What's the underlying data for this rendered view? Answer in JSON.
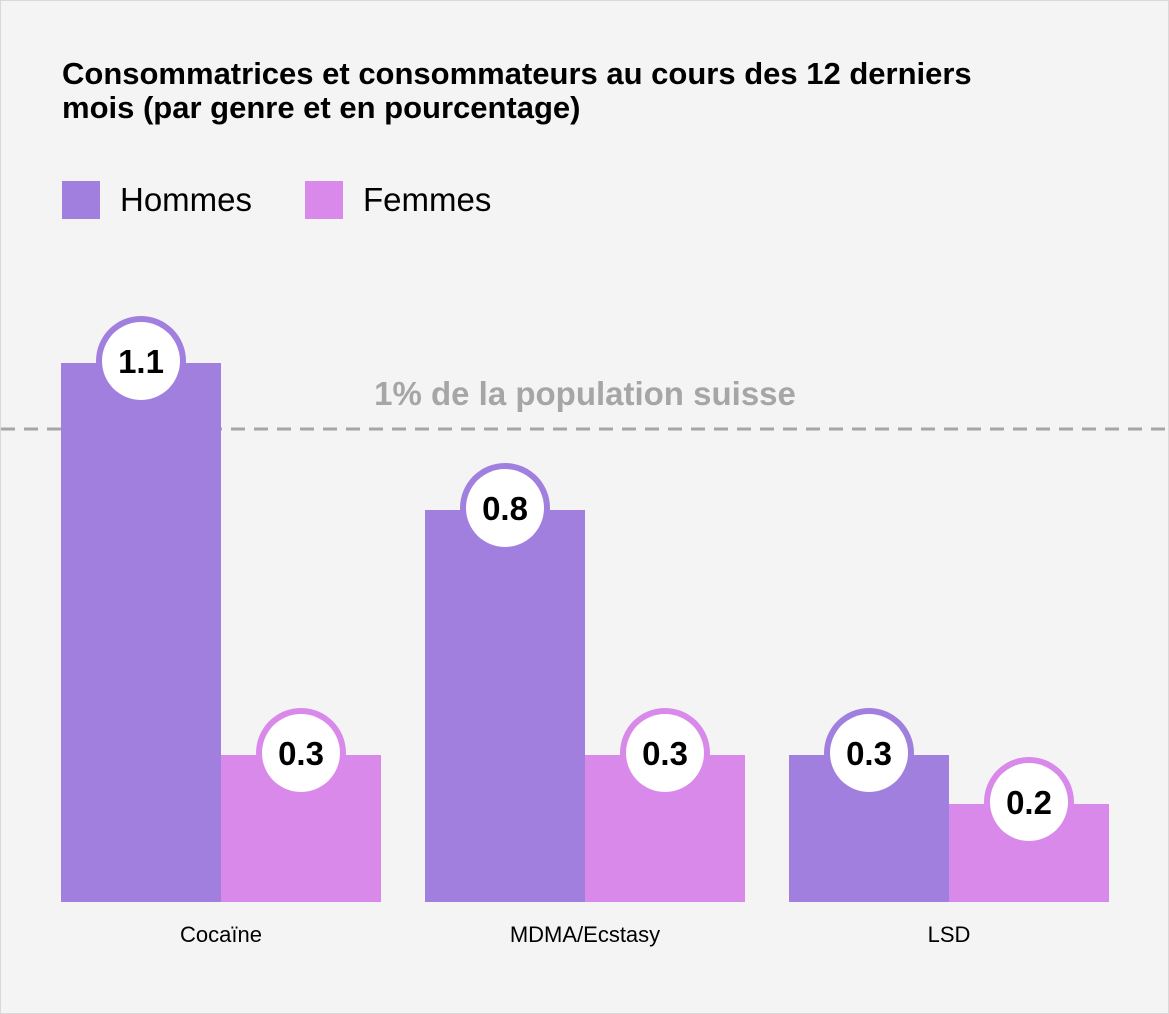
{
  "title": "Consommatrices et consommateurs au cours des 12 derniers mois (par genre et en pourcentage)",
  "colors": {
    "Hommes": "#a07fde",
    "Femmes": "#d989ea",
    "reference": "#a6a6a6"
  },
  "legend": [
    {
      "label": "Hommes"
    },
    {
      "label": "Femmes"
    }
  ],
  "chart_data": {
    "type": "bar",
    "title": "Consommatrices et consommateurs au cours des 12 derniers mois (par genre et en pourcentage)",
    "categories": [
      "Cocaïne",
      "MDMA/Ecstasy",
      "LSD"
    ],
    "series": [
      {
        "name": "Hommes",
        "values": [
          1.1,
          0.8,
          0.3
        ],
        "labels": [
          "1.1",
          "0.8",
          "0.3"
        ]
      },
      {
        "name": "Femmes",
        "values": [
          0.3,
          0.3,
          0.2
        ],
        "labels": [
          "0.3",
          "0.3",
          "0.2"
        ]
      }
    ],
    "reference_line": {
      "value": 1,
      "label": "1% de la population suisse",
      "style": "dashed"
    },
    "ylim": [
      0,
      1.1
    ],
    "grid": false,
    "legend_position": "top-left",
    "data_labels": "circle-badge-on-bar-top"
  }
}
